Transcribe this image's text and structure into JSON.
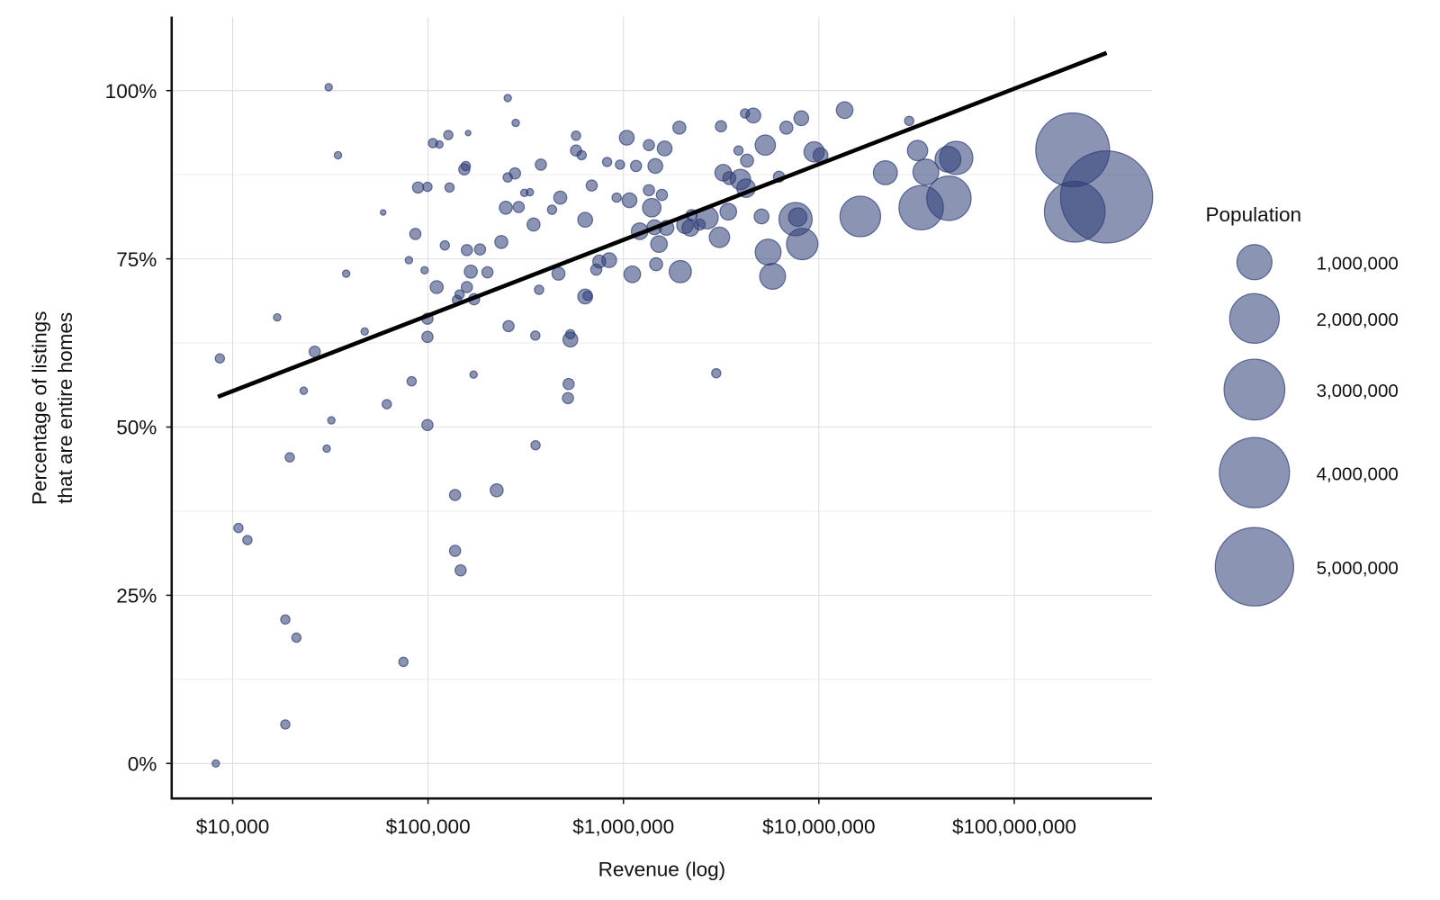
{
  "chart_data": {
    "type": "scatter",
    "x_label": "Revenue (log)",
    "y_label": [
      "Percentage of listings",
      "that are entire homes"
    ],
    "log_x": true,
    "grid": true,
    "color": "#2e3d75",
    "xlim": [
      4875,
      507000000
    ],
    "ylim": [
      -5.2,
      111
    ],
    "xticks": [
      {
        "value": 10000,
        "label": "$10,000"
      },
      {
        "value": 100000,
        "label": "$100,000"
      },
      {
        "value": 1000000,
        "label": "$1,000,000"
      },
      {
        "value": 10000000,
        "label": "$10,000,000"
      },
      {
        "value": 100000000,
        "label": "$100,000,000"
      }
    ],
    "yticks": [
      {
        "value": 0,
        "label": "0%"
      },
      {
        "value": 25,
        "label": "25%"
      },
      {
        "value": 50,
        "label": "50%"
      },
      {
        "value": 75,
        "label": "75%"
      },
      {
        "value": 100,
        "label": "100%"
      }
    ],
    "y_minor_ticks": [
      12.5,
      37.5,
      62.5,
      87.5
    ],
    "x": [
      8200,
      8600,
      10700,
      11900,
      18600,
      21200,
      18600,
      19600,
      16900,
      26300,
      23100,
      31000,
      34600,
      32000,
      30300,
      38100,
      47400,
      58900,
      61500,
      74800,
      79800,
      82400,
      86100,
      88900,
      96000,
      99300,
      99300,
      99300,
      99300,
      105900,
      114300,
      110700,
      121900,
      128800,
      127000,
      137500,
      137500,
      146800,
      140600,
      145000,
      153300,
      156000,
      160300,
      158000,
      158000,
      165500,
      171000,
      172000,
      184500,
      201400,
      224500,
      237100,
      250000,
      255800,
      255800,
      258200,
      278600,
      281000,
      291100,
      311000,
      331900,
      346700,
      354000,
      355000,
      370000,
      378000,
      431000,
      465000,
      475000,
      524000,
      520000,
      535000,
      535000,
      572000,
      572000,
      611000,
      637000,
      637000,
      655000,
      688000,
      726000,
      752000,
      845000,
      825000,
      923000,
      960000,
      1040000,
      1074000,
      1110000,
      1160000,
      1211000,
      1350000,
      1350000,
      1396000,
      1456000,
      1470000,
      1440000,
      1520000,
      1573000,
      1625000,
      1660000,
      1932000,
      1954000,
      2065000,
      2200000,
      2230000,
      2455000,
      2680000,
      2985000,
      3155000,
      3240000,
      3100000,
      3440000,
      3480000,
      3880000,
      3970000,
      4190000,
      4290000,
      4240000,
      4620000,
      5090000,
      5320000,
      5500000,
      5800000,
      6250000,
      6820000,
      7600000,
      7800000,
      8130000,
      8220000,
      9460000,
      10200000,
      13550000,
      16300000,
      21900000,
      29000000,
      32000000,
      33400000,
      35300000,
      45800000,
      50500000,
      46300000,
      199000000,
      204000000,
      297000000
    ],
    "values": [
      0,
      60.2,
      35.0,
      33.2,
      21.4,
      18.7,
      5.8,
      45.5,
      66.3,
      61.2,
      55.4,
      100.5,
      90.4,
      51.0,
      46.8,
      72.8,
      64.2,
      81.9,
      53.4,
      15.1,
      74.8,
      56.8,
      78.7,
      85.6,
      73.3,
      85.7,
      66.1,
      63.4,
      50.3,
      92.2,
      92.0,
      70.8,
      77.0,
      85.6,
      93.4,
      39.9,
      31.6,
      28.7,
      68.9,
      69.7,
      88.3,
      88.8,
      93.7,
      70.8,
      76.3,
      73.1,
      57.8,
      69.0,
      76.4,
      73.0,
      40.6,
      77.5,
      82.6,
      98.9,
      87.1,
      65.0,
      87.7,
      95.2,
      82.7,
      84.8,
      84.9,
      80.1,
      63.6,
      47.3,
      70.4,
      89.0,
      82.3,
      72.8,
      84.1,
      56.4,
      54.3,
      63.0,
      63.8,
      93.3,
      91.1,
      90.4,
      80.8,
      69.4,
      69.5,
      85.9,
      73.4,
      74.6,
      74.8,
      89.4,
      84.1,
      89.0,
      93.0,
      83.7,
      72.7,
      88.8,
      79.1,
      85.2,
      91.9,
      82.6,
      88.8,
      74.2,
      79.7,
      77.2,
      84.5,
      91.4,
      79.6,
      94.5,
      73.1,
      80.0,
      79.6,
      81.5,
      80.1,
      81.1,
      58.0,
      94.7,
      87.8,
      78.2,
      82.0,
      87.0,
      91.1,
      86.8,
      96.6,
      89.6,
      85.5,
      96.3,
      81.3,
      91.9,
      76.0,
      72.4,
      87.2,
      94.5,
      80.9,
      81.2,
      95.9,
      77.2,
      90.9,
      90.4,
      97.1,
      81.3,
      87.8,
      95.5,
      91.1,
      82.6,
      87.9,
      89.8,
      90.0,
      84.0,
      91.2,
      82.0,
      84.2
    ],
    "sizes": [
      44000,
      69000,
      69000,
      69000,
      69000,
      69000,
      69000,
      69000,
      44000,
      100000,
      44000,
      44000,
      44000,
      44000,
      44000,
      44000,
      44000,
      25000,
      69000,
      69000,
      44000,
      69000,
      100000,
      100000,
      44000,
      69000,
      100000,
      100000,
      100000,
      69000,
      44000,
      136000,
      69000,
      69000,
      69000,
      100000,
      100000,
      100000,
      69000,
      69000,
      100000,
      69000,
      25000,
      100000,
      100000,
      136000,
      44000,
      100000,
      100000,
      100000,
      136000,
      136000,
      136000,
      44000,
      69000,
      100000,
      100000,
      44000,
      100000,
      44000,
      44000,
      136000,
      69000,
      69000,
      69000,
      100000,
      69000,
      136000,
      136000,
      100000,
      100000,
      177000,
      69000,
      69000,
      100000,
      69000,
      177000,
      177000,
      69000,
      100000,
      100000,
      136000,
      177000,
      69000,
      69000,
      69000,
      177000,
      177000,
      224000,
      100000,
      224000,
      100000,
      100000,
      277000,
      177000,
      136000,
      177000,
      224000,
      100000,
      177000,
      177000,
      136000,
      400000,
      224000,
      224000,
      100000,
      100000,
      400000,
      69000,
      100000,
      224000,
      335000,
      224000,
      136000,
      69000,
      335000,
      69000,
      136000,
      277000,
      177000,
      177000,
      335000,
      543000,
      543000,
      100000,
      136000,
      897000,
      277000,
      177000,
      800000,
      335000,
      177000,
      224000,
      1340000,
      468000,
      69000,
      335000,
      1600000,
      543000,
      543000,
      897000,
      1600000,
      4430000,
      3000000,
      6900000
    ],
    "trend": {
      "x": [
        8400,
        297000000
      ],
      "values": [
        54.5,
        105.6
      ]
    },
    "size_legend": {
      "title": "Population",
      "values": [
        {
          "value": 1000000,
          "label": "1,000,000"
        },
        {
          "value": 2000000,
          "label": "2,000,000"
        },
        {
          "value": 3000000,
          "label": "3,000,000"
        },
        {
          "value": 4000000,
          "label": "4,000,000"
        },
        {
          "value": 5000000,
          "label": "5,000,000"
        }
      ]
    }
  }
}
